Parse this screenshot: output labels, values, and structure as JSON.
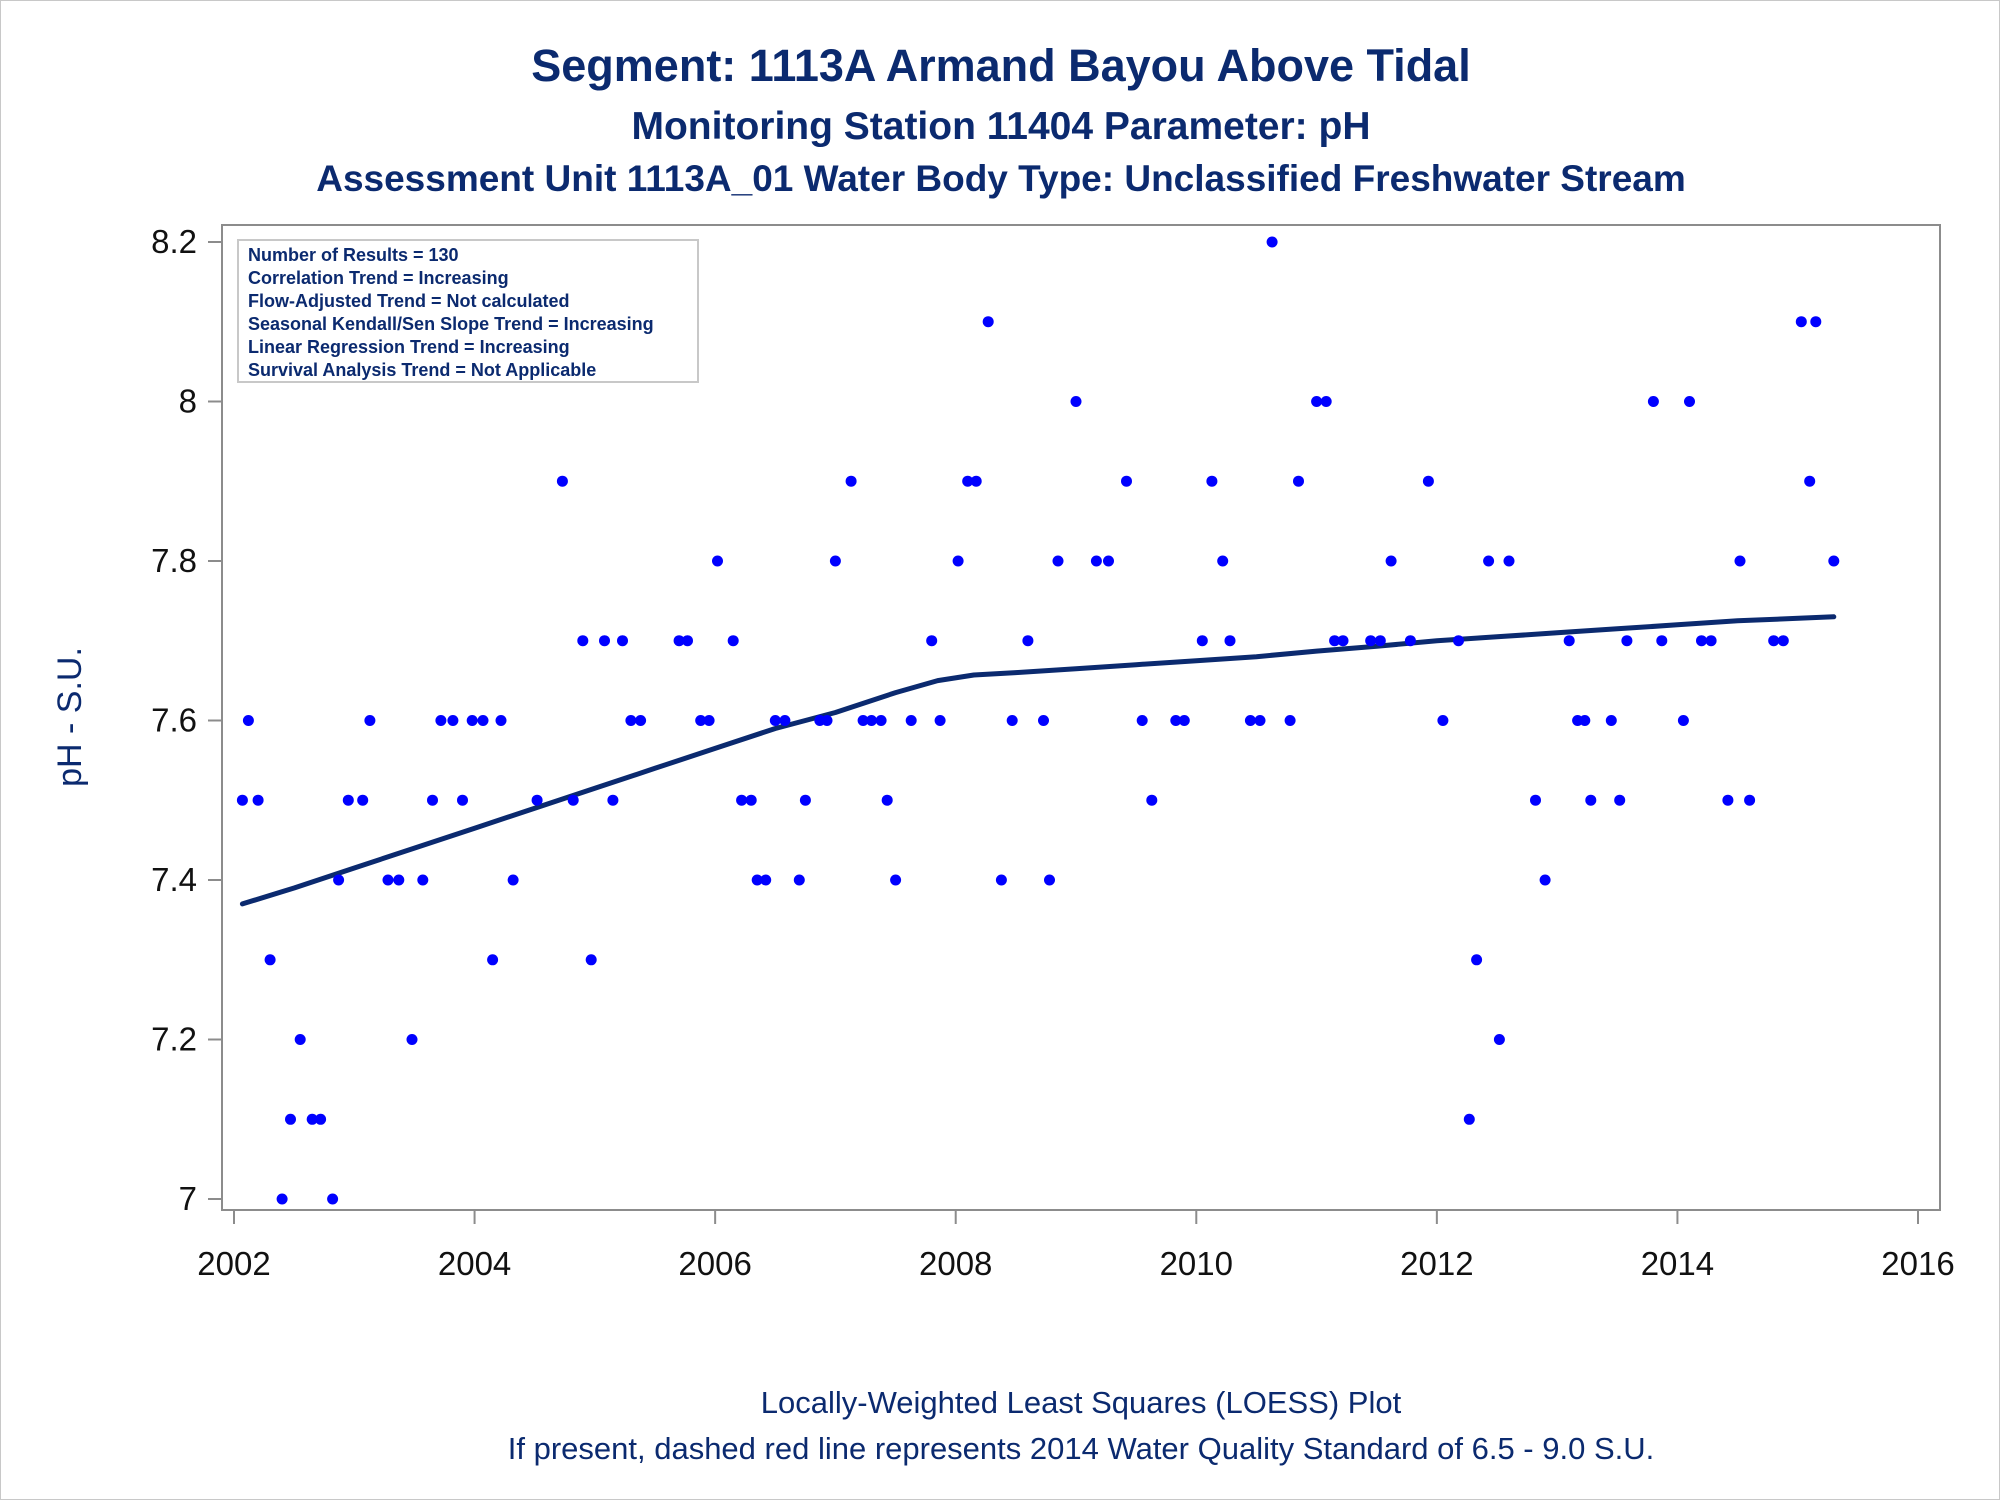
{
  "header": {
    "title": "Segment: 1113A  Armand Bayou Above Tidal",
    "subtitle": "Monitoring Station 11404 Parameter: pH",
    "subtitle2": "Assessment Unit 1113A_01   Water Body Type: Unclassified Freshwater Stream"
  },
  "stats_box": {
    "lines": [
      "Number of Results = 130",
      "Correlation Trend = Increasing",
      "Flow-Adjusted Trend = Not calculated",
      "Seasonal Kendall/Sen Slope Trend = Increasing",
      "Linear Regression Trend = Increasing",
      "Survival Analysis Trend = Not Applicable"
    ]
  },
  "footer": {
    "line1": "Locally-Weighted Least Squares (LOESS) Plot",
    "line2": "If present, dashed red line represents 2014 Water Quality Standard of 6.5 - 9.0 S.U."
  },
  "colors": {
    "title": "#0b2a6f",
    "points": "#0000ff",
    "loess": "#0b2a6f",
    "axis": "#8c8c8c"
  },
  "chart_data": {
    "type": "scatter",
    "xlabel": "",
    "ylabel": "pH - S.U.",
    "xlim": [
      2002,
      2016
    ],
    "ylim": [
      7.0,
      8.2
    ],
    "x_ticks": [
      2002,
      2004,
      2006,
      2008,
      2010,
      2012,
      2014,
      2016
    ],
    "y_ticks": [
      7,
      7.2,
      7.4,
      7.6,
      7.8,
      8,
      8.2
    ],
    "y_tick_labels": [
      "7",
      "7.2",
      "7.4",
      "7.6",
      "7.8",
      "8",
      "8.2"
    ],
    "grid": false,
    "legend": "none",
    "series": [
      {
        "kind": "points",
        "points": [
          [
            2002.07,
            7.5
          ],
          [
            2002.12,
            7.6
          ],
          [
            2002.2,
            7.5
          ],
          [
            2002.3,
            7.3
          ],
          [
            2002.4,
            7.0
          ],
          [
            2002.47,
            7.1
          ],
          [
            2002.55,
            7.2
          ],
          [
            2002.65,
            7.1
          ],
          [
            2002.72,
            7.1
          ],
          [
            2002.82,
            7.0
          ],
          [
            2002.87,
            7.4
          ],
          [
            2002.95,
            7.5
          ],
          [
            2003.07,
            7.5
          ],
          [
            2003.13,
            7.6
          ],
          [
            2003.28,
            7.4
          ],
          [
            2003.37,
            7.4
          ],
          [
            2003.48,
            7.2
          ],
          [
            2003.57,
            7.4
          ],
          [
            2003.65,
            7.5
          ],
          [
            2003.72,
            7.6
          ],
          [
            2003.82,
            7.6
          ],
          [
            2003.9,
            7.5
          ],
          [
            2003.98,
            7.6
          ],
          [
            2004.07,
            7.6
          ],
          [
            2004.15,
            7.3
          ],
          [
            2004.22,
            7.6
          ],
          [
            2004.32,
            7.4
          ],
          [
            2004.52,
            7.5
          ],
          [
            2004.73,
            7.9
          ],
          [
            2004.82,
            7.5
          ],
          [
            2004.9,
            7.7
          ],
          [
            2004.97,
            7.3
          ],
          [
            2005.08,
            7.7
          ],
          [
            2005.15,
            7.5
          ],
          [
            2005.23,
            7.7
          ],
          [
            2005.3,
            7.6
          ],
          [
            2005.38,
            7.6
          ],
          [
            2005.7,
            7.7
          ],
          [
            2005.77,
            7.7
          ],
          [
            2005.88,
            7.6
          ],
          [
            2005.95,
            7.6
          ],
          [
            2006.02,
            7.8
          ],
          [
            2006.15,
            7.7
          ],
          [
            2006.22,
            7.5
          ],
          [
            2006.3,
            7.5
          ],
          [
            2006.35,
            7.4
          ],
          [
            2006.42,
            7.4
          ],
          [
            2006.5,
            7.6
          ],
          [
            2006.58,
            7.6
          ],
          [
            2006.7,
            7.4
          ],
          [
            2006.75,
            7.5
          ],
          [
            2006.87,
            7.6
          ],
          [
            2006.93,
            7.6
          ],
          [
            2007.0,
            7.8
          ],
          [
            2007.13,
            7.9
          ],
          [
            2007.23,
            7.6
          ],
          [
            2007.3,
            7.6
          ],
          [
            2007.38,
            7.6
          ],
          [
            2007.43,
            7.5
          ],
          [
            2007.5,
            7.4
          ],
          [
            2007.63,
            7.6
          ],
          [
            2007.8,
            7.7
          ],
          [
            2007.87,
            7.6
          ],
          [
            2008.02,
            7.8
          ],
          [
            2008.1,
            7.9
          ],
          [
            2008.17,
            7.9
          ],
          [
            2008.27,
            8.1
          ],
          [
            2008.38,
            7.4
          ],
          [
            2008.47,
            7.6
          ],
          [
            2008.6,
            7.7
          ],
          [
            2008.73,
            7.6
          ],
          [
            2008.78,
            7.4
          ],
          [
            2008.85,
            7.8
          ],
          [
            2009.0,
            8.0
          ],
          [
            2009.17,
            7.8
          ],
          [
            2009.27,
            7.8
          ],
          [
            2009.42,
            7.9
          ],
          [
            2009.55,
            7.6
          ],
          [
            2009.63,
            7.5
          ],
          [
            2009.83,
            7.6
          ],
          [
            2009.9,
            7.6
          ],
          [
            2010.05,
            7.7
          ],
          [
            2010.13,
            7.9
          ],
          [
            2010.22,
            7.8
          ],
          [
            2010.28,
            7.7
          ],
          [
            2010.45,
            7.6
          ],
          [
            2010.53,
            7.6
          ],
          [
            2010.63,
            8.2
          ],
          [
            2010.78,
            7.6
          ],
          [
            2010.85,
            7.9
          ],
          [
            2011.0,
            8.0
          ],
          [
            2011.08,
            8.0
          ],
          [
            2011.15,
            7.7
          ],
          [
            2011.22,
            7.7
          ],
          [
            2011.45,
            7.7
          ],
          [
            2011.53,
            7.7
          ],
          [
            2011.62,
            7.8
          ],
          [
            2011.78,
            7.7
          ],
          [
            2011.93,
            7.9
          ],
          [
            2012.05,
            7.6
          ],
          [
            2012.18,
            7.7
          ],
          [
            2012.27,
            7.1
          ],
          [
            2012.33,
            7.3
          ],
          [
            2012.43,
            7.8
          ],
          [
            2012.52,
            7.2
          ],
          [
            2012.6,
            7.8
          ],
          [
            2012.82,
            7.5
          ],
          [
            2012.9,
            7.4
          ],
          [
            2013.1,
            7.7
          ],
          [
            2013.17,
            7.6
          ],
          [
            2013.23,
            7.6
          ],
          [
            2013.28,
            7.5
          ],
          [
            2013.45,
            7.6
          ],
          [
            2013.52,
            7.5
          ],
          [
            2013.58,
            7.7
          ],
          [
            2013.8,
            8.0
          ],
          [
            2013.87,
            7.7
          ],
          [
            2014.05,
            7.6
          ],
          [
            2014.1,
            8.0
          ],
          [
            2014.2,
            7.7
          ],
          [
            2014.28,
            7.7
          ],
          [
            2014.42,
            7.5
          ],
          [
            2014.52,
            7.8
          ],
          [
            2014.6,
            7.5
          ],
          [
            2014.8,
            7.7
          ],
          [
            2014.88,
            7.7
          ],
          [
            2015.03,
            8.1
          ],
          [
            2015.1,
            7.9
          ],
          [
            2015.15,
            8.1
          ],
          [
            2015.3,
            7.8
          ]
        ]
      },
      {
        "kind": "line",
        "points": [
          [
            2002.07,
            7.37
          ],
          [
            2002.5,
            7.39
          ],
          [
            2003.0,
            7.415
          ],
          [
            2003.5,
            7.44
          ],
          [
            2004.0,
            7.465
          ],
          [
            2004.5,
            7.49
          ],
          [
            2005.0,
            7.515
          ],
          [
            2005.5,
            7.54
          ],
          [
            2006.0,
            7.565
          ],
          [
            2006.5,
            7.59
          ],
          [
            2007.0,
            7.61
          ],
          [
            2007.5,
            7.635
          ],
          [
            2007.85,
            7.65
          ],
          [
            2008.15,
            7.657
          ],
          [
            2008.5,
            7.66
          ],
          [
            2009.0,
            7.665
          ],
          [
            2009.5,
            7.67
          ],
          [
            2010.0,
            7.675
          ],
          [
            2010.5,
            7.68
          ],
          [
            2011.0,
            7.687
          ],
          [
            2011.5,
            7.693
          ],
          [
            2012.0,
            7.7
          ],
          [
            2012.5,
            7.705
          ],
          [
            2013.0,
            7.71
          ],
          [
            2013.5,
            7.715
          ],
          [
            2014.0,
            7.72
          ],
          [
            2014.5,
            7.725
          ],
          [
            2015.3,
            7.73
          ]
        ]
      }
    ]
  }
}
